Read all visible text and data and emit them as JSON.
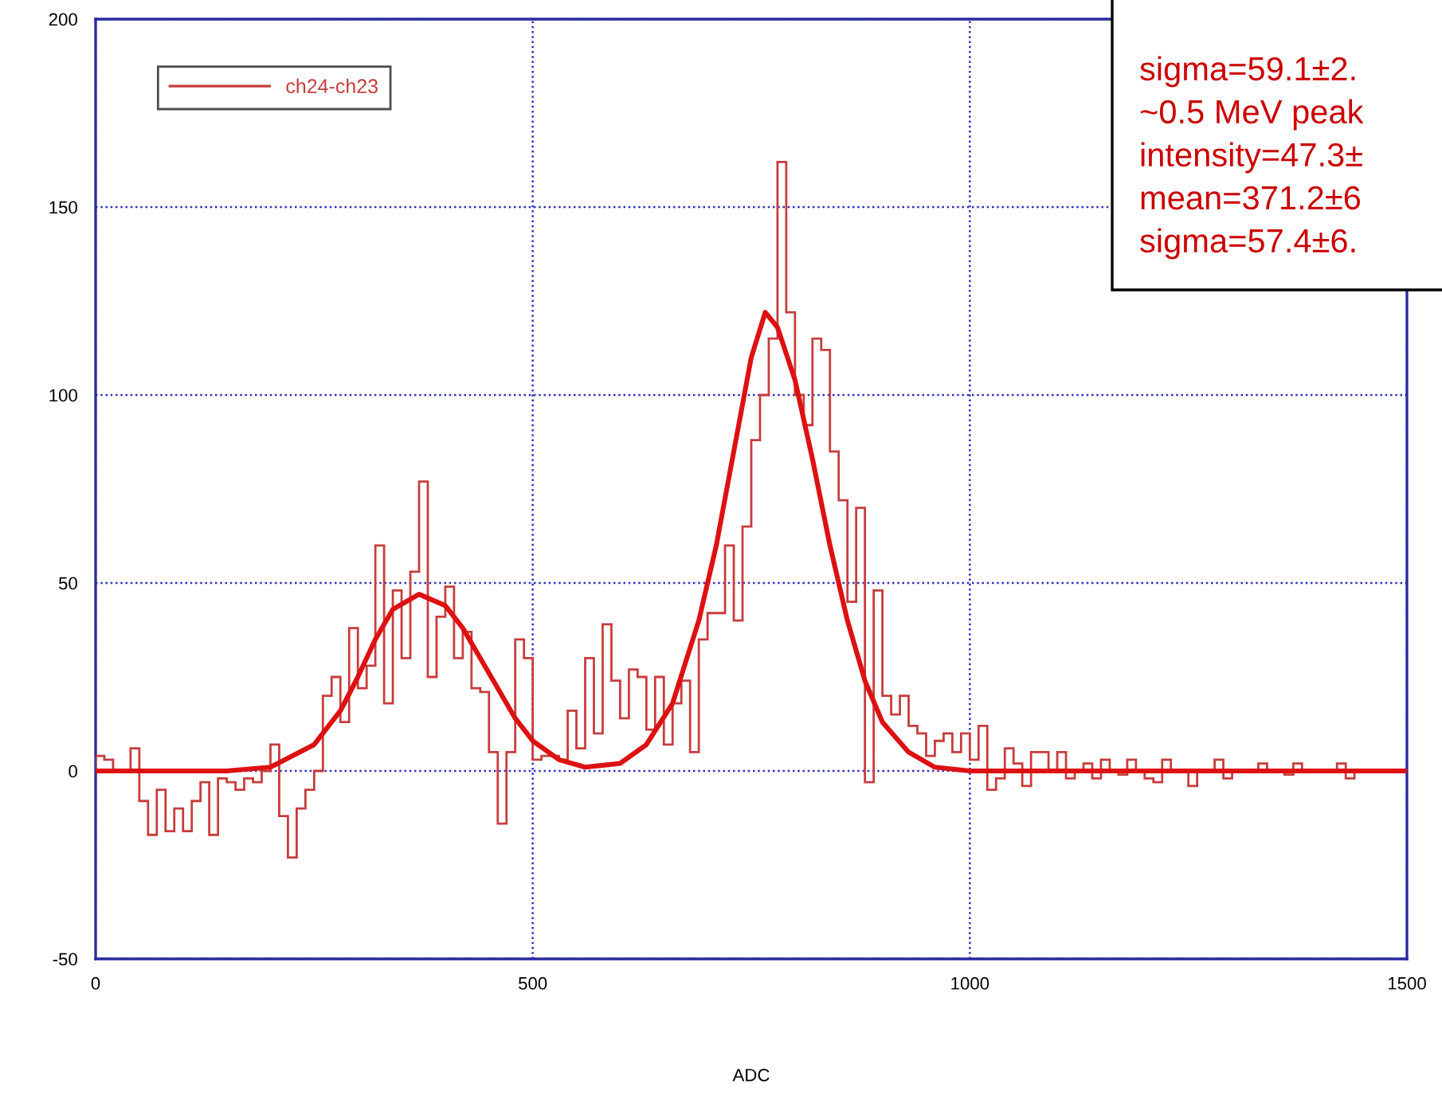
{
  "chart_data": {
    "type": "histogram",
    "xlabel": "ADC",
    "xlim": [
      0,
      1500
    ],
    "xticks": [
      0,
      500,
      1000,
      1500
    ],
    "ylim": [
      -50,
      200
    ],
    "yticks": [
      -50,
      0,
      50,
      100,
      150,
      200
    ],
    "grid": true,
    "legend": "top left",
    "annotations": [
      "sigma=59.1±2.",
      "~0.5 MeV peak",
      "intensity=47.3±",
      "mean=371.2±6",
      "sigma=57.4±6."
    ],
    "series": [
      {
        "name": "ch24-ch23",
        "color": "#c83c3c",
        "bins": [
          0,
          10,
          20,
          30,
          40,
          50,
          60,
          70,
          80,
          90,
          100,
          110,
          120,
          130,
          140,
          150,
          160,
          170,
          180,
          190,
          200,
          210,
          220,
          230,
          240,
          250,
          260,
          270,
          280,
          290,
          300,
          310,
          320,
          330,
          340,
          350,
          360,
          370,
          380,
          390,
          400,
          410,
          420,
          430,
          440,
          450,
          460,
          470,
          480,
          490,
          500,
          510,
          520,
          530,
          540,
          550,
          560,
          570,
          580,
          590,
          600,
          610,
          620,
          630,
          640,
          650,
          660,
          670,
          680,
          690,
          700,
          710,
          720,
          730,
          740,
          750,
          760,
          770,
          780,
          790,
          800,
          810,
          820,
          830,
          840,
          850,
          860,
          870,
          880,
          890,
          900,
          910,
          920,
          930,
          940,
          950,
          960,
          970,
          980,
          990,
          1000,
          1010,
          1020,
          1030,
          1040,
          1050,
          1060,
          1070,
          1080,
          1090,
          1100,
          1110,
          1120,
          1130,
          1140,
          1150,
          1160,
          1170,
          1180,
          1190,
          1200,
          1210,
          1220,
          1230,
          1240,
          1250,
          1260,
          1270,
          1280,
          1290,
          1300,
          1310,
          1320,
          1330,
          1340,
          1350,
          1360,
          1370,
          1380,
          1390,
          1400,
          1410,
          1420,
          1430,
          1440,
          1450,
          1460,
          1470,
          1480,
          1490,
          1500
        ],
        "values": [
          4,
          3,
          0,
          0,
          6,
          -8,
          -17,
          -5,
          -16,
          -10,
          -16,
          -8,
          -3,
          -17,
          -2,
          -3,
          -5,
          -2,
          -3,
          0,
          7,
          -12,
          -23,
          -10,
          -5,
          0,
          20,
          25,
          13,
          38,
          22,
          28,
          60,
          18,
          48,
          30,
          53,
          77,
          25,
          41,
          49,
          30,
          37,
          22,
          21,
          5,
          -14,
          5,
          35,
          30,
          3,
          4,
          4,
          3,
          16,
          6,
          30,
          10,
          39,
          24,
          14,
          27,
          25,
          11,
          25,
          7,
          18,
          24,
          5,
          35,
          42,
          42,
          60,
          40,
          65,
          88,
          100,
          115,
          162,
          122,
          100,
          92,
          115,
          112,
          85,
          72,
          45,
          70,
          -3,
          48,
          20,
          15,
          20,
          12,
          10,
          4,
          8,
          10,
          5,
          10,
          3,
          12,
          -5,
          -2,
          6,
          2,
          -4,
          5,
          5,
          0,
          5,
          -2,
          0,
          2,
          -2,
          3,
          0,
          -1,
          3,
          0,
          -2,
          -3,
          3,
          0,
          0,
          -4,
          0,
          0,
          3,
          -2,
          0,
          0,
          0,
          2,
          0,
          0,
          -1,
          2,
          0,
          0,
          0,
          0,
          2,
          -2,
          0,
          0,
          0,
          0,
          0,
          0
        ]
      },
      {
        "type": "line",
        "color": "#dd1111",
        "x": [
          0,
          150,
          200,
          250,
          280,
          300,
          320,
          340,
          370,
          400,
          420,
          450,
          480,
          500,
          530,
          560,
          600,
          630,
          660,
          690,
          710,
          730,
          750,
          766,
          780,
          800,
          820,
          840,
          860,
          880,
          900,
          930,
          960,
          1000,
          1500
        ],
        "values": [
          0,
          0,
          1,
          7,
          16,
          25,
          35,
          43,
          47,
          44,
          38,
          26,
          14,
          8,
          3,
          1,
          2,
          7,
          18,
          40,
          60,
          85,
          110,
          122,
          118,
          104,
          83,
          60,
          40,
          24,
          13,
          5,
          1,
          0,
          0
        ]
      }
    ]
  }
}
